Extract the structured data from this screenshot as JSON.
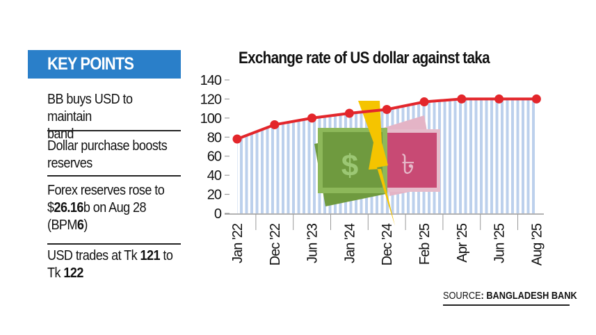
{
  "key_points": {
    "heading": "KEY POINTS",
    "items": [
      {
        "lines": [
          "BB buys USD to maintain",
          "band"
        ]
      },
      {
        "lines": [
          "Dollar purchase boosts",
          "reserves"
        ]
      },
      {
        "pre": "Forex reserves rose to",
        "dollar": "$",
        "bold1": "26.16",
        "mid": "b on Aug 28",
        "paren_open": "(BPM",
        "bold2": "6",
        "paren_close": ")"
      },
      {
        "pre": "USD trades at Tk ",
        "bold1": "121",
        "mid": " to",
        "pre2": "Tk ",
        "bold2": "122"
      }
    ]
  },
  "source": {
    "label": "SOURCE",
    "value": ": BANGLADESH BANK"
  },
  "colors": {
    "line": "#e3262b",
    "fill_stripes": "#bcd0ec",
    "header": "#2a7fc9",
    "dollar_note": "#6f9a3f",
    "taka_note": "#c84a74",
    "lightning": "#f5c400"
  },
  "illustration_icons": [
    "dollar-note-icon",
    "taka-note-icon",
    "lightning-icon"
  ],
  "chart_data": {
    "type": "line",
    "title": "Exchange rate of US dollar against taka",
    "xlabel": "",
    "ylabel": "",
    "categories": [
      "Jan '22",
      "Dec '22",
      "Jun '23",
      "Jan '24",
      "Dec '24",
      "Feb '25",
      "Apr '25",
      "Jun '25",
      "Aug '25"
    ],
    "values": [
      78,
      93,
      100,
      105,
      109,
      117,
      120,
      120,
      120
    ],
    "ylim": [
      0,
      140
    ],
    "yticks": [
      0,
      20,
      40,
      60,
      80,
      100,
      120,
      140
    ],
    "area_fill": "vertical stripes",
    "grid": false
  }
}
